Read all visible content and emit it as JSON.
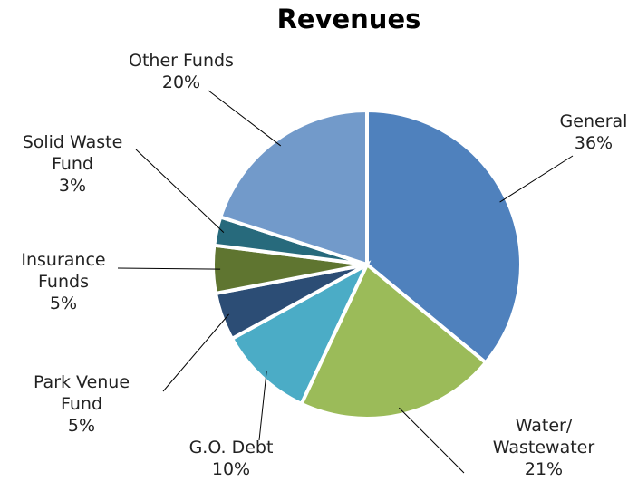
{
  "chart_data": {
    "type": "pie",
    "title": "Revenues",
    "categories": [
      "General",
      "Water/ Wastewater",
      "G.O. Debt",
      "Park Venue Fund",
      "Insurance Funds",
      "Solid Waste Fund",
      "Other Funds"
    ],
    "values": [
      36,
      21,
      10,
      5,
      5,
      3,
      20
    ],
    "value_labels": [
      "36%",
      "21%",
      "10%",
      "5%",
      "5%",
      "3%",
      "20%"
    ],
    "colors": [
      "#4f81bd",
      "#9bbb59",
      "#4bacc6",
      "#2c4d75",
      "#5f7530",
      "#276a7c",
      "#729aca"
    ]
  }
}
